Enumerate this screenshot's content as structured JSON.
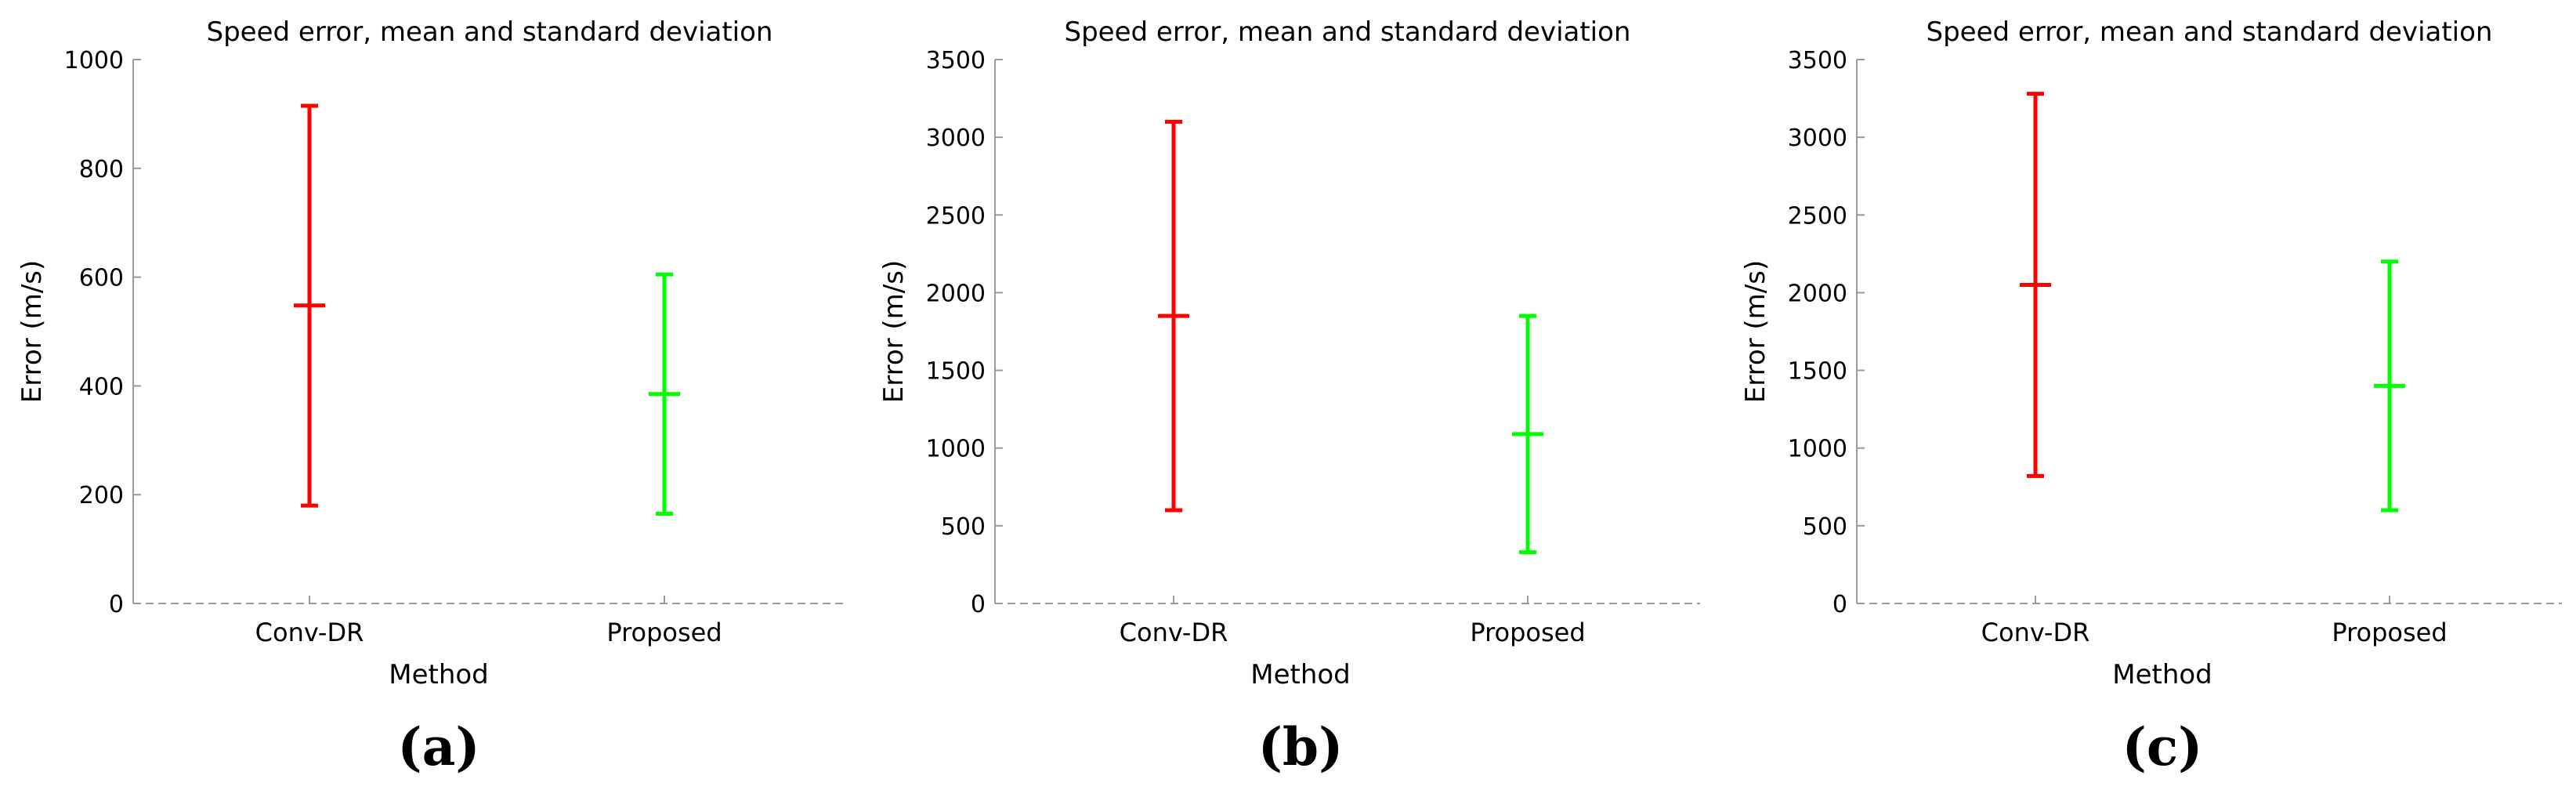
{
  "figure": {
    "panels": [
      "(a)",
      "(b)",
      "(c)"
    ]
  },
  "chart_data": [
    {
      "type": "errorbar",
      "title": "Speed error, mean and standard deviation",
      "xlabel": "Method",
      "ylabel": "Error (m/s)",
      "categories": [
        "Conv-DR",
        "Proposed"
      ],
      "ylim": [
        0,
        1000
      ],
      "yticks": [
        0,
        200,
        400,
        600,
        800,
        1000
      ],
      "series": [
        {
          "mean": 548,
          "low": 180,
          "high": 915,
          "color": "#ff0000"
        },
        {
          "mean": 385,
          "low": 165,
          "high": 605,
          "color": "#00ff00"
        }
      ],
      "grid": false
    },
    {
      "type": "errorbar",
      "title": "Speed error, mean and standard deviation",
      "xlabel": "Method",
      "ylabel": "Error (m/s)",
      "categories": [
        "Conv-DR",
        "Proposed"
      ],
      "ylim": [
        0,
        3500
      ],
      "yticks": [
        0,
        500,
        1000,
        1500,
        2000,
        2500,
        3000,
        3500
      ],
      "series": [
        {
          "mean": 1850,
          "low": 600,
          "high": 3100,
          "color": "#ff0000"
        },
        {
          "mean": 1090,
          "low": 330,
          "high": 1850,
          "color": "#00ff00"
        }
      ],
      "grid": false
    },
    {
      "type": "errorbar",
      "title": "Speed error, mean and standard deviation",
      "xlabel": "Method",
      "ylabel": "Error (m/s)",
      "categories": [
        "Conv-DR",
        "Proposed"
      ],
      "ylim": [
        0,
        3500
      ],
      "yticks": [
        0,
        500,
        1000,
        1500,
        2000,
        2500,
        3000,
        3500
      ],
      "series": [
        {
          "mean": 2050,
          "low": 820,
          "high": 3280,
          "color": "#ff0000"
        },
        {
          "mean": 1400,
          "low": 600,
          "high": 2200,
          "color": "#00ff00"
        }
      ],
      "grid": false
    }
  ]
}
